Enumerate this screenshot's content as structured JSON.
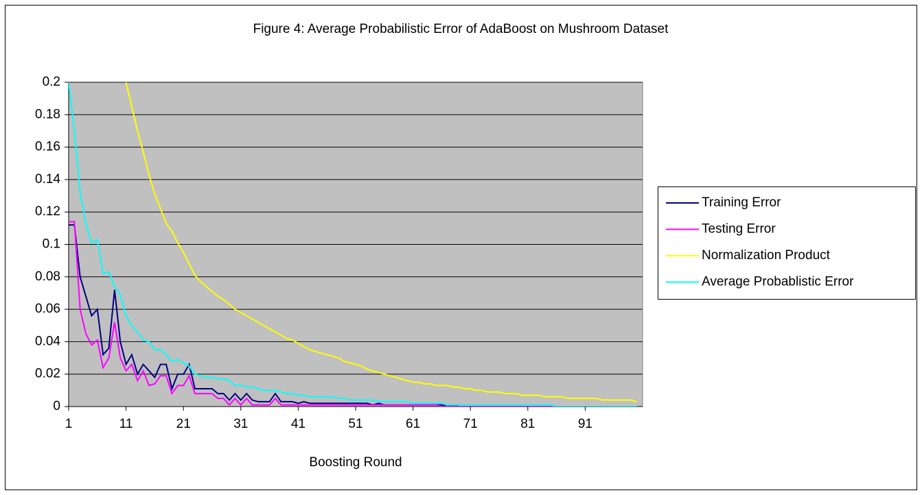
{
  "chart_data": {
    "type": "line",
    "title": "Figure 4: Average Probabilistic Error of AdaBoost on Mushroom Dataset",
    "x_label": "Boosting Round",
    "x": [
      1,
      2,
      3,
      4,
      5,
      6,
      7,
      8,
      9,
      10,
      11,
      12,
      13,
      14,
      15,
      16,
      17,
      18,
      19,
      20,
      21,
      22,
      23,
      24,
      25,
      26,
      27,
      28,
      29,
      30,
      31,
      32,
      33,
      34,
      35,
      36,
      37,
      38,
      39,
      40,
      41,
      42,
      43,
      44,
      45,
      46,
      47,
      48,
      49,
      50,
      51,
      52,
      53,
      54,
      55,
      56,
      57,
      58,
      59,
      60,
      61,
      62,
      63,
      64,
      65,
      66,
      67,
      68,
      69,
      70,
      71,
      72,
      73,
      74,
      75,
      76,
      77,
      78,
      79,
      80,
      81,
      82,
      83,
      84,
      85,
      86,
      87,
      88,
      89,
      90,
      91,
      92,
      93,
      94,
      95,
      96,
      97,
      98,
      99,
      100
    ],
    "xlim": [
      1,
      101
    ],
    "xticks": [
      1,
      11,
      21,
      31,
      41,
      51,
      61,
      71,
      81,
      91
    ],
    "ylim": [
      0,
      0.2
    ],
    "yticks": [
      0,
      0.02,
      0.04,
      0.06,
      0.08,
      0.1,
      0.12,
      0.14,
      0.16,
      0.18,
      0.2
    ],
    "grid": true,
    "legend": "right",
    "background": "#c0c0c0",
    "series": [
      {
        "name": "Training Error",
        "color": "#000080",
        "values": [
          0.112,
          0.112,
          0.08,
          0.068,
          0.056,
          0.06,
          0.032,
          0.036,
          0.072,
          0.04,
          0.026,
          0.032,
          0.02,
          0.026,
          0.022,
          0.018,
          0.026,
          0.026,
          0.011,
          0.02,
          0.02,
          0.026,
          0.011,
          0.011,
          0.011,
          0.011,
          0.008,
          0.008,
          0.004,
          0.008,
          0.004,
          0.008,
          0.004,
          0.003,
          0.003,
          0.003,
          0.008,
          0.003,
          0.003,
          0.003,
          0.002,
          0.003,
          0.002,
          0.002,
          0.002,
          0.002,
          0.002,
          0.002,
          0.002,
          0.002,
          0.002,
          0.002,
          0.002,
          0.001,
          0.002,
          0.001,
          0.001,
          0.001,
          0.001,
          0.001,
          0.001,
          0.001,
          0.001,
          0.001,
          0.001,
          0.001,
          0,
          0.001,
          0,
          0,
          0,
          0,
          0,
          0,
          0,
          0,
          0,
          0,
          0,
          0,
          0,
          0,
          0,
          0,
          0,
          0,
          0,
          0,
          0,
          0,
          0,
          0,
          0,
          0,
          0,
          0,
          0,
          0,
          0,
          0
        ]
      },
      {
        "name": "Testing Error",
        "color": "#ff00ff",
        "values": [
          0.114,
          0.114,
          0.06,
          0.045,
          0.038,
          0.041,
          0.024,
          0.03,
          0.052,
          0.03,
          0.022,
          0.026,
          0.016,
          0.022,
          0.013,
          0.014,
          0.019,
          0.019,
          0.008,
          0.013,
          0.013,
          0.019,
          0.008,
          0.008,
          0.008,
          0.008,
          0.005,
          0.005,
          0.001,
          0.005,
          0.001,
          0.005,
          0.001,
          0.001,
          0.001,
          0.001,
          0.005,
          0.001,
          0.001,
          0.001,
          0.001,
          0.001,
          0.001,
          0.001,
          0.001,
          0.001,
          0.001,
          0.001,
          0.001,
          0.001,
          0.001,
          0.001,
          0.001,
          0.001,
          0.001,
          0.001,
          0.001,
          0.001,
          0.001,
          0.001,
          0.001,
          0.001,
          0.001,
          0.001,
          0.001,
          0,
          0,
          0,
          0,
          0,
          0,
          0,
          0,
          0,
          0,
          0,
          0,
          0,
          0,
          0,
          0,
          0,
          0,
          0,
          0,
          0,
          0,
          0,
          0,
          0,
          0,
          0,
          0,
          0,
          0,
          0,
          0,
          0,
          0,
          0
        ]
      },
      {
        "name": "Normalization Product",
        "color": "#ffff00",
        "values": [
          null,
          null,
          null,
          null,
          null,
          null,
          null,
          null,
          null,
          null,
          0.2,
          0.185,
          0.17,
          0.157,
          0.143,
          0.131,
          0.122,
          0.113,
          0.108,
          0.101,
          0.095,
          0.088,
          0.081,
          0.077,
          0.074,
          0.071,
          0.068,
          0.066,
          0.063,
          0.06,
          0.058,
          0.056,
          0.054,
          0.052,
          0.05,
          0.048,
          0.046,
          0.044,
          0.042,
          0.041,
          0.039,
          0.037,
          0.035,
          0.034,
          0.033,
          0.032,
          0.031,
          0.03,
          0.028,
          0.027,
          0.026,
          0.025,
          0.023,
          0.022,
          0.021,
          0.02,
          0.019,
          0.018,
          0.017,
          0.016,
          0.015,
          0.015,
          0.014,
          0.014,
          0.013,
          0.013,
          0.013,
          0.012,
          0.012,
          0.011,
          0.011,
          0.01,
          0.01,
          0.009,
          0.009,
          0.009,
          0.008,
          0.008,
          0.008,
          0.007,
          0.007,
          0.007,
          0.007,
          0.006,
          0.006,
          0.006,
          0.006,
          0.005,
          0.005,
          0.005,
          0.005,
          0.005,
          0.005,
          0.004,
          0.004,
          0.004,
          0.004,
          0.004,
          0.004,
          0.003
        ]
      },
      {
        "name": "Average Probablistic Error",
        "color": "#00ffff",
        "values": [
          0.2,
          0.17,
          0.132,
          0.113,
          0.101,
          0.103,
          0.082,
          0.083,
          0.074,
          0.069,
          0.056,
          0.05,
          0.046,
          0.041,
          0.04,
          0.035,
          0.035,
          0.032,
          0.028,
          0.029,
          0.027,
          0.025,
          0.02,
          0.019,
          0.018,
          0.018,
          0.017,
          0.017,
          0.016,
          0.013,
          0.013,
          0.012,
          0.012,
          0.011,
          0.01,
          0.01,
          0.01,
          0.009,
          0.008,
          0.008,
          0.007,
          0.007,
          0.006,
          0.006,
          0.006,
          0.006,
          0.006,
          0.005,
          0.005,
          0.004,
          0.004,
          0.004,
          0.004,
          0.004,
          0.003,
          0.003,
          0.003,
          0.003,
          0.003,
          0.003,
          0.002,
          0.002,
          0.002,
          0.002,
          0.002,
          0.002,
          0.001,
          0.001,
          0.001,
          0.001,
          0.001,
          0.001,
          0.001,
          0.001,
          0.001,
          0.001,
          0.001,
          0.001,
          0.001,
          0.001,
          0.001,
          0.001,
          0.001,
          0.001,
          0.001,
          0,
          0,
          0,
          0,
          0,
          0,
          0,
          0,
          0,
          0,
          0,
          0,
          0,
          0,
          0
        ]
      }
    ]
  }
}
